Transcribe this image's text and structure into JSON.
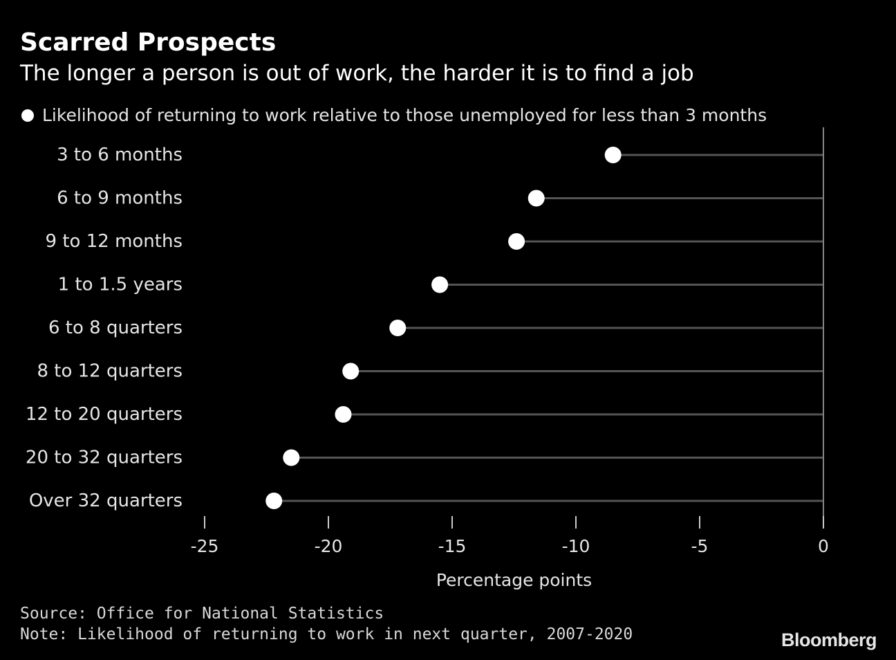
{
  "header": {
    "title": "Scarred Prospects",
    "subtitle": "The longer a person is out of work, the harder it is to find a job"
  },
  "legend": {
    "label": "Likelihood of returning to work relative to those unemployed for less than 3 months"
  },
  "footer": {
    "source": "Source: Office for National Statistics",
    "note": "Note: Likelihood of returning to work in next quarter, 2007-2020"
  },
  "brand": {
    "logo_text": "Bloomberg"
  },
  "colors": {
    "background": "#000000",
    "dot": "#ffffff",
    "stem": "#555555",
    "text": "#e6e6e6"
  },
  "chart_data": {
    "type": "dot",
    "orientation": "horizontal",
    "title": "Scarred Prospects",
    "subtitle": "The longer a person is out of work, the harder it is to find a job",
    "xlabel": "Percentage points",
    "ylabel": "",
    "xlim": [
      -25,
      0
    ],
    "xticks": [
      -25,
      -20,
      -15,
      -10,
      -5,
      0
    ],
    "xtick_labels": [
      "-25",
      "-20",
      "-15",
      "-10",
      "-5",
      "0"
    ],
    "categories": [
      "3 to 6 months",
      "6 to 9 months",
      "9 to 12 months",
      "1 to 1.5 years",
      "6 to 8 quarters",
      "8 to 12 quarters",
      "12 to 20 quarters",
      "20 to 32 quarters",
      "Over 32 quarters"
    ],
    "series": [
      {
        "name": "Likelihood of returning to work relative to those unemployed for less than 3 months",
        "values": [
          -8.5,
          -11.6,
          -12.4,
          -15.5,
          -17.2,
          -19.1,
          -19.4,
          -21.5,
          -22.2
        ]
      }
    ],
    "grid": false,
    "legend_position": "top-left"
  }
}
